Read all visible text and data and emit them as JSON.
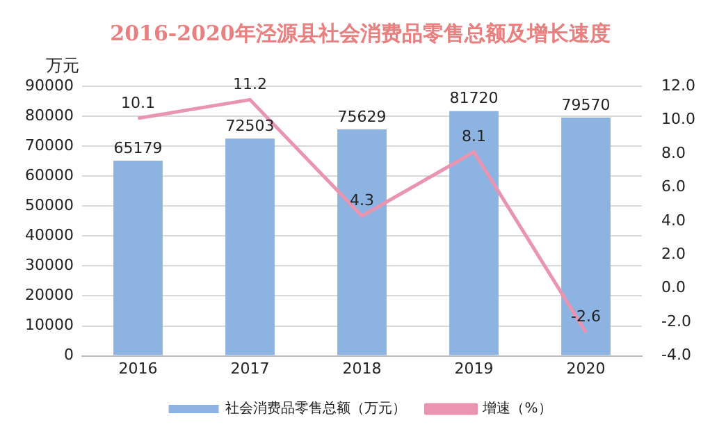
{
  "chart_data": {
    "type": "bar",
    "title": "2016-2020年泾源县社会消费品零售总额及增长速度",
    "ylabel": "万元",
    "categories": [
      "2016",
      "2017",
      "2018",
      "2019",
      "2020"
    ],
    "series": [
      {
        "name": "社会消费品零售总额（万元）",
        "color": "#8db3e2",
        "values": [
          65179,
          72503,
          75629,
          81720,
          79570
        ]
      },
      {
        "name": "增速（%）",
        "type": "line",
        "axis": "y2",
        "color": "#e994b0",
        "values": [
          10.1,
          11.2,
          4.3,
          8.1,
          -2.6
        ]
      }
    ],
    "ylim": [
      0,
      90000
    ],
    "yticks": [
      0,
      10000,
      20000,
      30000,
      40000,
      50000,
      60000,
      70000,
      80000,
      90000
    ],
    "y2lim": [
      -4,
      12
    ],
    "y2ticks": [
      {
        "value": -4,
        "label": "-4.0"
      },
      {
        "value": -2,
        "label": "-2.0"
      },
      {
        "value": 0,
        "label": "0.0"
      },
      {
        "value": 2,
        "label": "2.0"
      },
      {
        "value": 4,
        "label": "4.0"
      },
      {
        "value": 6,
        "label": "6.0"
      },
      {
        "value": 8,
        "label": "8.0"
      },
      {
        "value": 10,
        "label": "10.0"
      },
      {
        "value": 12,
        "label": "12.0"
      }
    ],
    "grid": "y",
    "legend": "bottom",
    "data_labels": true,
    "marker": "none",
    "line_style": "solid"
  }
}
